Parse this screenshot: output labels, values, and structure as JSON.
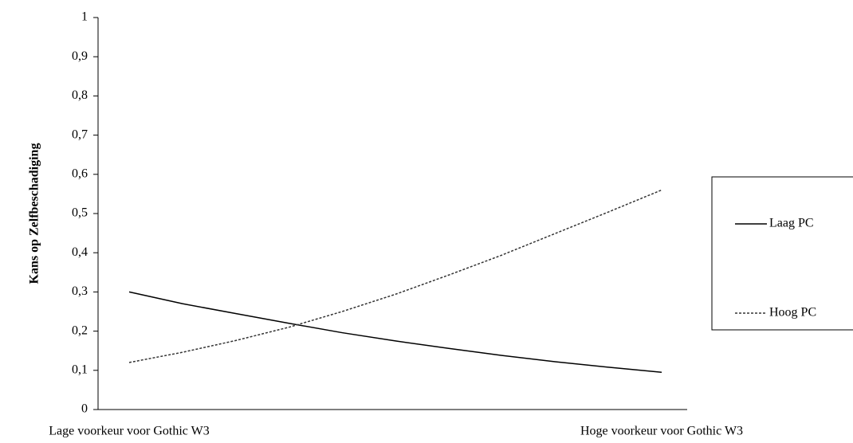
{
  "chart_data": {
    "type": "line",
    "y_label": "Kans op Zelfbeschadiging",
    "categories": [
      "Lage voorkeur voor Gothic W3",
      null,
      null,
      null,
      null,
      null,
      null,
      null,
      null,
      null,
      "Hoge voorkeur voor Gothic W3"
    ],
    "series": [
      {
        "name": "Laag PC",
        "color": "#000000",
        "dash": false,
        "values": [
          0.3,
          0.27,
          0.245,
          0.22,
          0.196,
          0.175,
          0.156,
          0.138,
          0.122,
          0.108,
          0.095
        ]
      },
      {
        "name": "Hoog PC",
        "color": "#333333",
        "dash": true,
        "values": [
          0.12,
          0.146,
          0.176,
          0.21,
          0.25,
          0.294,
          0.343,
          0.394,
          0.449,
          0.504,
          0.56
        ]
      }
    ],
    "ylim": [
      0,
      1
    ],
    "yticks": [
      0,
      {
        "value": 0.1,
        "label": "0,1"
      },
      {
        "value": 0.2,
        "label": "0,2"
      },
      {
        "value": 0.3,
        "label": "0,3"
      },
      {
        "value": 0.4,
        "label": "0,4"
      },
      {
        "value": 0.5,
        "label": "0,5"
      },
      {
        "value": 0.6,
        "label": "0,6"
      },
      {
        "value": 0.7,
        "label": "0,7"
      },
      {
        "value": 0.8,
        "label": "0,8"
      },
      {
        "value": 0.9,
        "label": "0,9"
      },
      1
    ],
    "grid": false,
    "legend": "right"
  }
}
